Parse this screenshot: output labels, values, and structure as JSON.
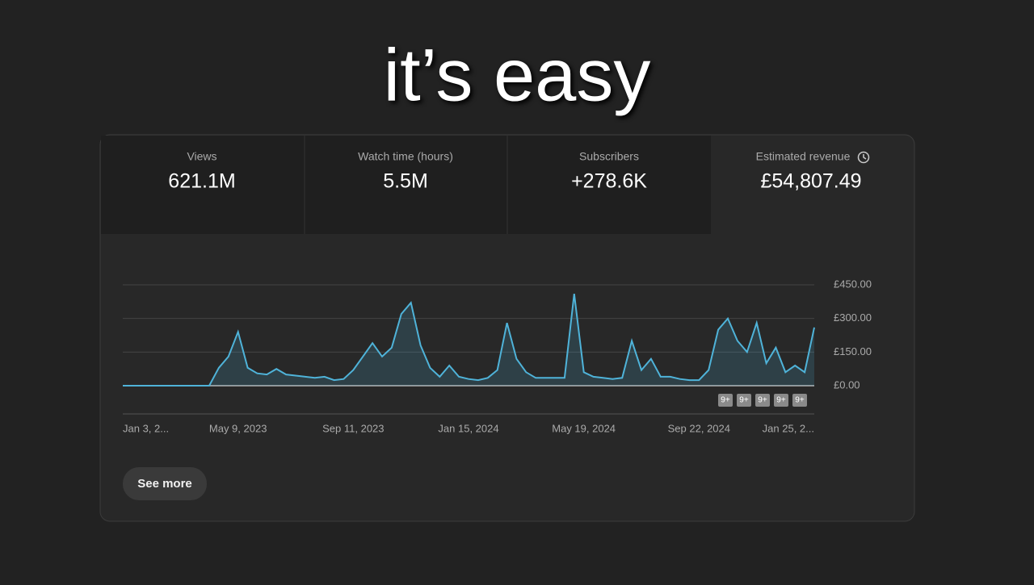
{
  "caption": "it’s easy",
  "metrics": [
    {
      "label": "Views",
      "value": "621.1M"
    },
    {
      "label": "Watch time (hours)",
      "value": "5.5M"
    },
    {
      "label": "Subscribers",
      "value": "+278.6K"
    },
    {
      "label": "Estimated revenue",
      "value": "£54,807.49"
    }
  ],
  "chart_data": {
    "type": "line",
    "categories": [
      "Jan 3, 2...",
      null,
      null,
      null,
      null,
      null,
      null,
      null,
      null,
      null,
      null,
      null,
      "May 9, 2023",
      null,
      null,
      null,
      null,
      null,
      null,
      null,
      null,
      null,
      null,
      null,
      "Sep 11, 2023",
      null,
      null,
      null,
      null,
      null,
      null,
      null,
      null,
      null,
      null,
      null,
      "Jan 15, 2024",
      null,
      null,
      null,
      null,
      null,
      null,
      null,
      null,
      null,
      null,
      null,
      "May 19, 2024",
      null,
      null,
      null,
      null,
      null,
      null,
      null,
      null,
      null,
      null,
      null,
      "Sep 22, 2024",
      null,
      null,
      null,
      null,
      null,
      null,
      null,
      null,
      null,
      null,
      null,
      "Jan 25, 2..."
    ],
    "values": [
      0,
      0,
      0,
      0,
      0,
      0,
      0,
      0,
      0,
      0,
      80,
      130,
      240,
      80,
      55,
      50,
      75,
      50,
      45,
      40,
      35,
      40,
      25,
      30,
      70,
      130,
      190,
      130,
      170,
      320,
      370,
      180,
      80,
      40,
      90,
      40,
      30,
      25,
      35,
      70,
      280,
      120,
      60,
      35,
      35,
      35,
      35,
      410,
      60,
      40,
      35,
      30,
      35,
      200,
      70,
      120,
      40,
      40,
      30,
      25,
      25,
      70,
      250,
      300,
      200,
      150,
      280,
      100,
      170,
      60,
      90,
      60,
      260
    ],
    "color": "#4fb3d9",
    "ylim": [
      0,
      450
    ],
    "yticks": [
      {
        "value": 0,
        "label": "£0.00"
      },
      {
        "value": 150,
        "label": "£150.00"
      },
      {
        "value": 300,
        "label": "£300.00"
      },
      {
        "value": 450,
        "label": "£450.00"
      }
    ],
    "grid": true,
    "annotations": [
      "9+",
      "9+",
      "9+",
      "9+",
      "9+"
    ]
  },
  "button": "See more"
}
